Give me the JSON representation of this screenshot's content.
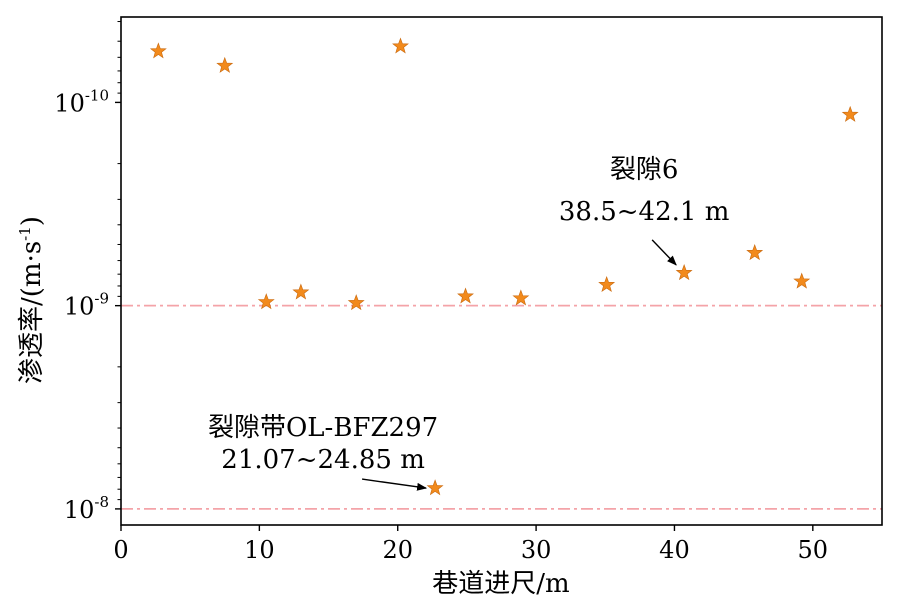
{
  "chart_data": {
    "type": "scatter",
    "title": "",
    "xlabel": "巷道进尺/m",
    "ylabel": "渗透率/(m·s",
    "ylabel_sup": "-1",
    "ylabel_close": ")",
    "xlim": [
      0,
      55
    ],
    "ylim": [
      1.2e-08,
      3.8e-11
    ],
    "y_inverted": true,
    "y_scale": "log",
    "grid": false,
    "xticks": [
      {
        "value": 0,
        "label": "0"
      },
      {
        "value": 10,
        "label": "10"
      },
      {
        "value": 20,
        "label": "20"
      },
      {
        "value": 30,
        "label": "30"
      },
      {
        "value": 40,
        "label": "40"
      },
      {
        "value": 50,
        "label": "50"
      }
    ],
    "yticks": [
      {
        "value": 1e-10,
        "base": "10",
        "exp": "-10"
      },
      {
        "value": 1e-09,
        "base": "10",
        "exp": "-9"
      },
      {
        "value": 1e-08,
        "base": "10",
        "exp": "-8"
      }
    ],
    "marker_color": "#f28a1c",
    "reference_line_color": "#f4a3a8",
    "reference_lines": [
      1e-09,
      1e-08
    ],
    "x": [
      2.7,
      7.5,
      10.5,
      13.0,
      17.0,
      20.2,
      24.9,
      28.9,
      35.1,
      40.7,
      45.8,
      49.2,
      52.7,
      22.7
    ],
    "y": [
      5.6e-11,
      6.6e-11,
      9.6e-10,
      8.6e-10,
      9.7e-10,
      5.3e-11,
      9e-10,
      9.2e-10,
      7.9e-10,
      6.9e-10,
      5.5e-10,
      7.6e-10,
      1.15e-10,
      7.9e-09
    ],
    "annotations": [
      {
        "lines": [
          "裂隙6",
          "38.5~42.1 m"
        ],
        "x": 40.7,
        "y": 6.9e-10
      },
      {
        "lines": [
          "裂隙带OL-BFZ297",
          "21.07~24.85 m"
        ],
        "x": 22.7,
        "y": 7.9e-09
      }
    ]
  }
}
